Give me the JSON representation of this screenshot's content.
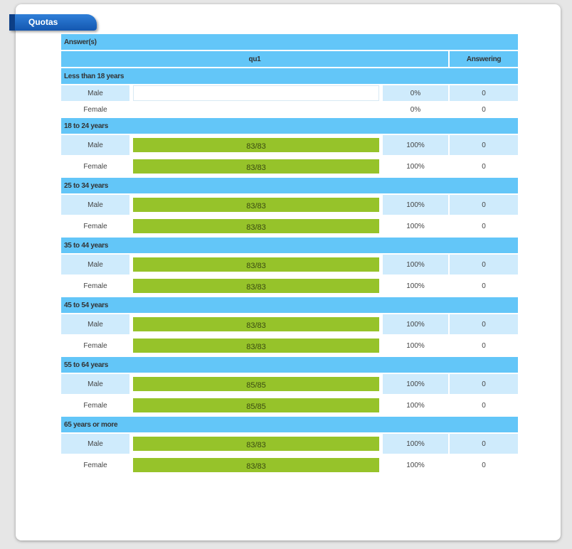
{
  "tab_title": "Quotas",
  "header": {
    "answers_label": "Answer(s)",
    "question_label": "qu1",
    "answering_label": "Answering"
  },
  "colors": {
    "header_bg": "#63c6f8",
    "row_alt_bg": "#cfebfc",
    "bar_fill": "#96c32a",
    "tab_bg": "#1457b0"
  },
  "groups": [
    {
      "label": "Less than 18 years",
      "rows": [
        {
          "gender": "Male",
          "bar": "",
          "percent_value": 0,
          "percent": "0%",
          "answering": "0"
        },
        {
          "gender": "Female",
          "bar": "",
          "percent_value": 0,
          "percent": "0%",
          "answering": "0"
        }
      ]
    },
    {
      "label": "18 to 24 years",
      "rows": [
        {
          "gender": "Male",
          "bar": "83/83",
          "percent_value": 100,
          "percent": "100%",
          "answering": "0"
        },
        {
          "gender": "Female",
          "bar": "83/83",
          "percent_value": 100,
          "percent": "100%",
          "answering": "0"
        }
      ]
    },
    {
      "label": "25 to 34 years",
      "rows": [
        {
          "gender": "Male",
          "bar": "83/83",
          "percent_value": 100,
          "percent": "100%",
          "answering": "0"
        },
        {
          "gender": "Female",
          "bar": "83/83",
          "percent_value": 100,
          "percent": "100%",
          "answering": "0"
        }
      ]
    },
    {
      "label": "35 to 44 years",
      "rows": [
        {
          "gender": "Male",
          "bar": "83/83",
          "percent_value": 100,
          "percent": "100%",
          "answering": "0"
        },
        {
          "gender": "Female",
          "bar": "83/83",
          "percent_value": 100,
          "percent": "100%",
          "answering": "0"
        }
      ]
    },
    {
      "label": "45 to 54 years",
      "rows": [
        {
          "gender": "Male",
          "bar": "83/83",
          "percent_value": 100,
          "percent": "100%",
          "answering": "0"
        },
        {
          "gender": "Female",
          "bar": "83/83",
          "percent_value": 100,
          "percent": "100%",
          "answering": "0"
        }
      ]
    },
    {
      "label": "55 to 64 years",
      "rows": [
        {
          "gender": "Male",
          "bar": "85/85",
          "percent_value": 100,
          "percent": "100%",
          "answering": "0"
        },
        {
          "gender": "Female",
          "bar": "85/85",
          "percent_value": 100,
          "percent": "100%",
          "answering": "0"
        }
      ]
    },
    {
      "label": "65 years or more",
      "rows": [
        {
          "gender": "Male",
          "bar": "83/83",
          "percent_value": 100,
          "percent": "100%",
          "answering": "0"
        },
        {
          "gender": "Female",
          "bar": "83/83",
          "percent_value": 100,
          "percent": "100%",
          "answering": "0"
        }
      ]
    }
  ]
}
